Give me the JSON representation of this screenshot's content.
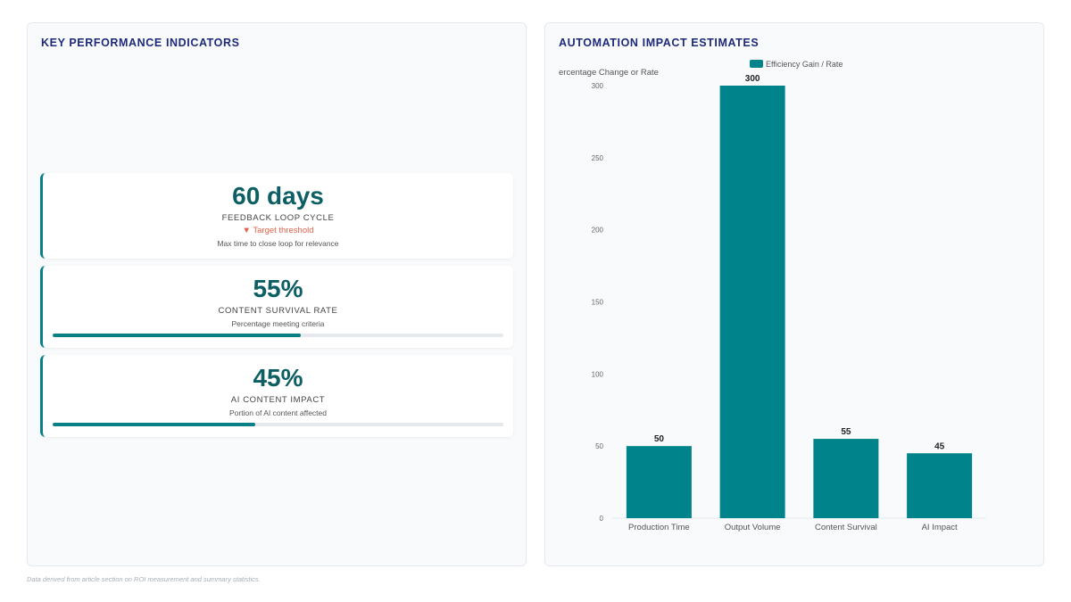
{
  "left_panel": {
    "title": "KEY PERFORMANCE INDICATORS",
    "kpis": [
      {
        "value": "60 days",
        "label": "FEEDBACK LOOP CYCLE",
        "trend": "▼ Target threshold",
        "description": "Max time to close loop for relevance"
      },
      {
        "value": "55%",
        "label": "CONTENT SURVIVAL RATE",
        "description": "Percentage meeting criteria",
        "progress": 0.55
      },
      {
        "value": "45%",
        "label": "AI CONTENT IMPACT",
        "description": "Portion of AI content affected",
        "progress": 0.45
      }
    ]
  },
  "right_panel": {
    "title": "AUTOMATION IMPACT ESTIMATES"
  },
  "chart_data": {
    "type": "bar",
    "categories": [
      "Production Time",
      "Output Volume",
      "Content Survival",
      "AI Impact"
    ],
    "series": [
      {
        "name": "Efficiency Gain / Rate",
        "values": [
          50,
          300,
          55,
          45
        ]
      }
    ],
    "ylabel": "ercentage Change or Rate",
    "xlabel": "",
    "ylim": [
      0,
      300
    ],
    "yticks": [
      0,
      50,
      100,
      150,
      200,
      250,
      300
    ],
    "grid": false,
    "legend_position": "top",
    "bar_color": "#00838a"
  },
  "footnote": "Data derived from article section on ROI measurement and summary statistics."
}
